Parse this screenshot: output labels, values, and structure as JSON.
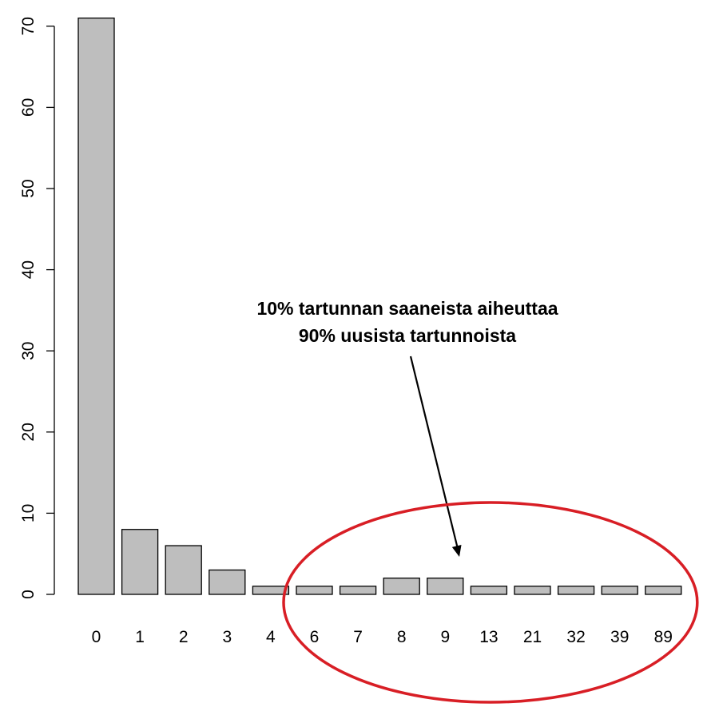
{
  "chart_data": {
    "type": "bar",
    "title": "",
    "xlabel": "",
    "ylabel": "",
    "categories": [
      "0",
      "1",
      "2",
      "3",
      "4",
      "6",
      "7",
      "8",
      "9",
      "13",
      "21",
      "32",
      "39",
      "89"
    ],
    "values": [
      71,
      8,
      6,
      3,
      1,
      1,
      1,
      2,
      2,
      1,
      1,
      1,
      1,
      1
    ],
    "ylim": [
      0,
      70
    ],
    "yticks": [
      0,
      10,
      20,
      30,
      40,
      50,
      60,
      70
    ],
    "grid": false,
    "annotation": {
      "lines": [
        "10% tartunnan saaneista aiheuttaa",
        "90% uusista tartunnoista"
      ],
      "highlight_categories": [
        "6",
        "7",
        "8",
        "9",
        "13",
        "21",
        "32",
        "39",
        "89"
      ]
    },
    "colors": {
      "bar_fill": "#bebebe",
      "bar_stroke": "#000000",
      "highlight": "#d81e25"
    }
  }
}
